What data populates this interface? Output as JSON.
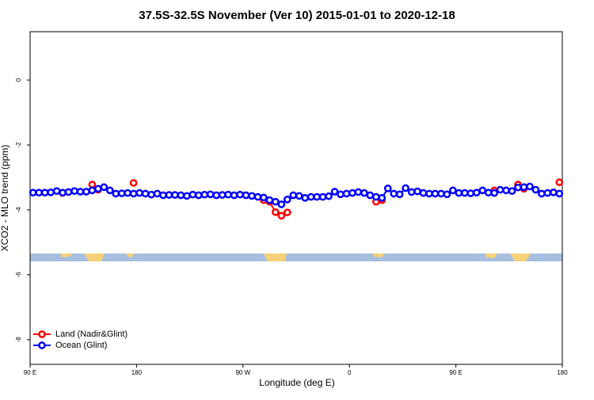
{
  "chart_data": {
    "type": "line",
    "title": "37.5S-32.5S November (Ver 10)   2015-01-01 to 2020-12-18",
    "xlabel": "Longitude (deg E)",
    "ylabel": "XCO2 - MLO trend (ppm)",
    "x": [
      92.5,
      97.5,
      102.5,
      107.5,
      112.5,
      117.5,
      122.5,
      127.5,
      132.5,
      137.5,
      142.5,
      147.5,
      152.5,
      157.5,
      162.5,
      167.5,
      172.5,
      177.5,
      182.5,
      187.5,
      192.5,
      197.5,
      202.5,
      207.5,
      212.5,
      217.5,
      222.5,
      227.5,
      232.5,
      237.5,
      242.5,
      247.5,
      252.5,
      257.5,
      262.5,
      267.5,
      272.5,
      277.5,
      282.5,
      287.5,
      292.5,
      297.5,
      302.5,
      307.5,
      312.5,
      317.5,
      322.5,
      327.5,
      332.5,
      337.5,
      342.5,
      347.5,
      352.5,
      357.5,
      362.5,
      367.5,
      372.5,
      377.5,
      382.5,
      387.5,
      392.5,
      397.5,
      402.5,
      407.5,
      412.5,
      417.5,
      422.5,
      427.5,
      432.5,
      437.5,
      442.5,
      447.5,
      452.5,
      457.5,
      462.5,
      467.5,
      472.5,
      477.5,
      482.5,
      487.5,
      492.5,
      497.5,
      502.5,
      507.5,
      512.5,
      517.5,
      522.5,
      527.5,
      532.5,
      537.5
    ],
    "series": [
      {
        "name": "Land (Nadir&Glint)",
        "color": "#ff0000",
        "values": [
          null,
          null,
          null,
          null,
          null,
          -3.48,
          null,
          null,
          null,
          null,
          -3.22,
          -3.38,
          null,
          null,
          null,
          null,
          null,
          -3.17,
          null,
          null,
          null,
          null,
          null,
          null,
          null,
          null,
          null,
          null,
          null,
          null,
          null,
          null,
          null,
          null,
          null,
          null,
          null,
          null,
          null,
          -3.7,
          -3.75,
          -4.07,
          -4.18,
          -4.08,
          null,
          null,
          null,
          null,
          null,
          null,
          null,
          null,
          null,
          null,
          null,
          null,
          null,
          null,
          -3.75,
          -3.7,
          null,
          null,
          null,
          null,
          null,
          null,
          null,
          null,
          null,
          null,
          null,
          null,
          null,
          null,
          null,
          null,
          null,
          null,
          -3.4,
          null,
          null,
          null,
          -3.22,
          -3.35,
          null,
          null,
          null,
          null,
          null,
          -3.15
        ]
      },
      {
        "name": "Ocean (Glint)",
        "color": "#0000ff",
        "values": [
          -3.47,
          -3.47,
          -3.47,
          -3.46,
          -3.42,
          -3.47,
          -3.45,
          -3.42,
          -3.44,
          -3.44,
          -3.4,
          -3.35,
          -3.3,
          -3.4,
          -3.5,
          -3.49,
          -3.48,
          -3.5,
          -3.48,
          -3.5,
          -3.53,
          -3.5,
          -3.55,
          -3.54,
          -3.54,
          -3.55,
          -3.57,
          -3.53,
          -3.55,
          -3.53,
          -3.52,
          -3.55,
          -3.54,
          -3.53,
          -3.55,
          -3.53,
          -3.55,
          -3.57,
          -3.6,
          -3.62,
          -3.7,
          -3.75,
          -3.83,
          -3.68,
          -3.55,
          -3.57,
          -3.63,
          -3.6,
          -3.6,
          -3.6,
          -3.58,
          -3.44,
          -3.52,
          -3.5,
          -3.48,
          -3.45,
          -3.48,
          -3.55,
          -3.6,
          -3.63,
          -3.34,
          -3.5,
          -3.52,
          -3.33,
          -3.45,
          -3.43,
          -3.48,
          -3.5,
          -3.5,
          -3.5,
          -3.52,
          -3.4,
          -3.48,
          -3.48,
          -3.49,
          -3.47,
          -3.4,
          -3.47,
          -3.48,
          -3.38,
          -3.4,
          -3.42,
          -3.31,
          -3.3,
          -3.28,
          -3.38,
          -3.5,
          -3.48,
          -3.46,
          -3.5
        ]
      }
    ],
    "xlim": [
      90,
      540
    ],
    "xticks": [
      {
        "value": 90,
        "label": "90 E"
      },
      180,
      {
        "value": 270,
        "label": "90 W"
      },
      {
        "value": 360,
        "label": "0"
      },
      {
        "value": 450,
        "label": "90 E"
      },
      {
        "value": 540,
        "label": "180"
      }
    ],
    "ylim": [
      -8.76,
      1.49
    ],
    "yticks": [
      0,
      -2,
      -4,
      -6,
      -8
    ],
    "legend": "lower left"
  }
}
